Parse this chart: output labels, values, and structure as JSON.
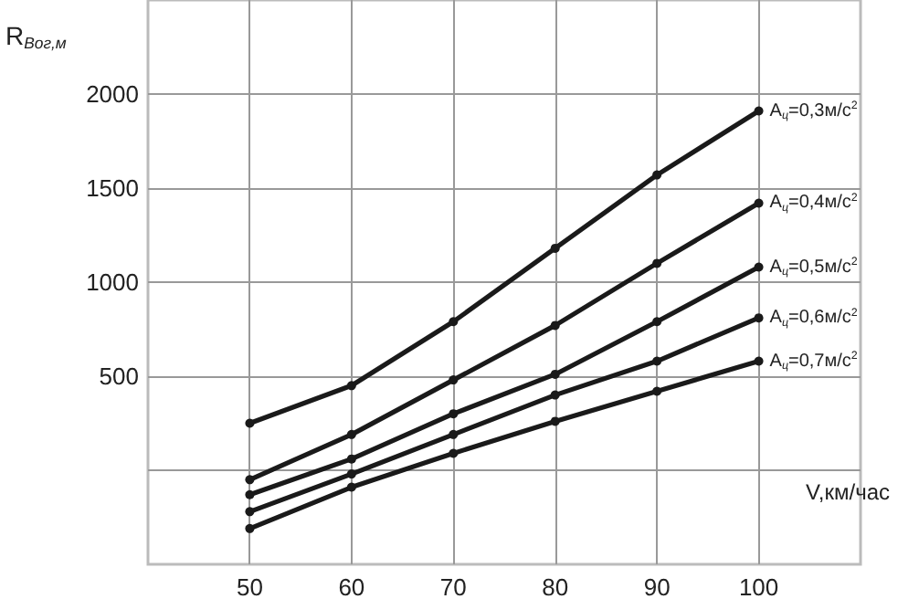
{
  "chart_data": {
    "type": "line",
    "xlabel": "V,км/час",
    "ylabel": "R$_{Вог,м}$",
    "x": [
      50,
      60,
      70,
      80,
      90,
      100
    ],
    "series": [
      {
        "name": "A$_{ц}$=0,3м/с$^{2}$",
        "color": "#1a1a1a",
        "values": [
          250,
          450,
          790,
          1180,
          1570,
          1910
        ]
      },
      {
        "name": "A$_{ц}$=0,4м/с$^{2}$",
        "color": "#1a1a1a",
        "values": [
          -50,
          190,
          480,
          770,
          1100,
          1420
        ]
      },
      {
        "name": "A$_{ц}$=0,5м/с$^{2}$",
        "color": "#1a1a1a",
        "values": [
          -130,
          60,
          300,
          510,
          790,
          1080
        ]
      },
      {
        "name": "A$_{ц}$=0,6м/с$^{2}$",
        "color": "#1a1a1a",
        "values": [
          -220,
          -20,
          190,
          400,
          580,
          810
        ]
      },
      {
        "name": "A$_{ц}$=0,7м/с$^{2}$",
        "color": "#1a1a1a",
        "values": [
          -310,
          -90,
          90,
          260,
          420,
          580
        ]
      }
    ],
    "xlim": [
      40,
      110
    ],
    "xticks": [
      50,
      60,
      70,
      80,
      90,
      100
    ],
    "ylim": [
      -500,
      2500
    ],
    "yticks": [
      {
        "value": 0,
        "label": null
      },
      500,
      1000,
      1500,
      2000
    ],
    "grid": true,
    "marker": "circle",
    "line_style": "solid"
  }
}
